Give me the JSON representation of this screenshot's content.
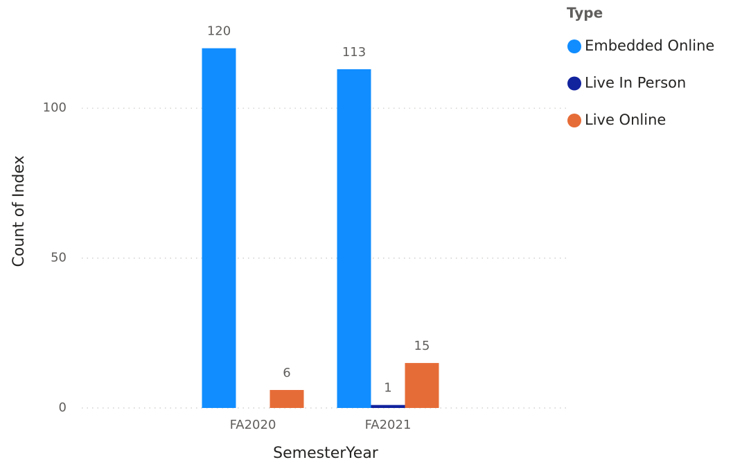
{
  "chart_data": {
    "type": "bar",
    "x_label": "SemesterYear",
    "y_label": "Count of Index",
    "legend_title": "Type",
    "categories": [
      "FA2020",
      "FA2021"
    ],
    "series": [
      {
        "name": "Embedded Online",
        "color": "#118DFF",
        "values": [
          120,
          113
        ]
      },
      {
        "name": "Live In Person",
        "color": "#12239E",
        "values": [
          null,
          1
        ]
      },
      {
        "name": "Live Online",
        "color": "#E66C37",
        "values": [
          6,
          15
        ]
      }
    ],
    "ylim": [
      0,
      125
    ],
    "yticks": [
      0,
      50,
      100
    ],
    "grid": true,
    "legend": "top-right"
  }
}
